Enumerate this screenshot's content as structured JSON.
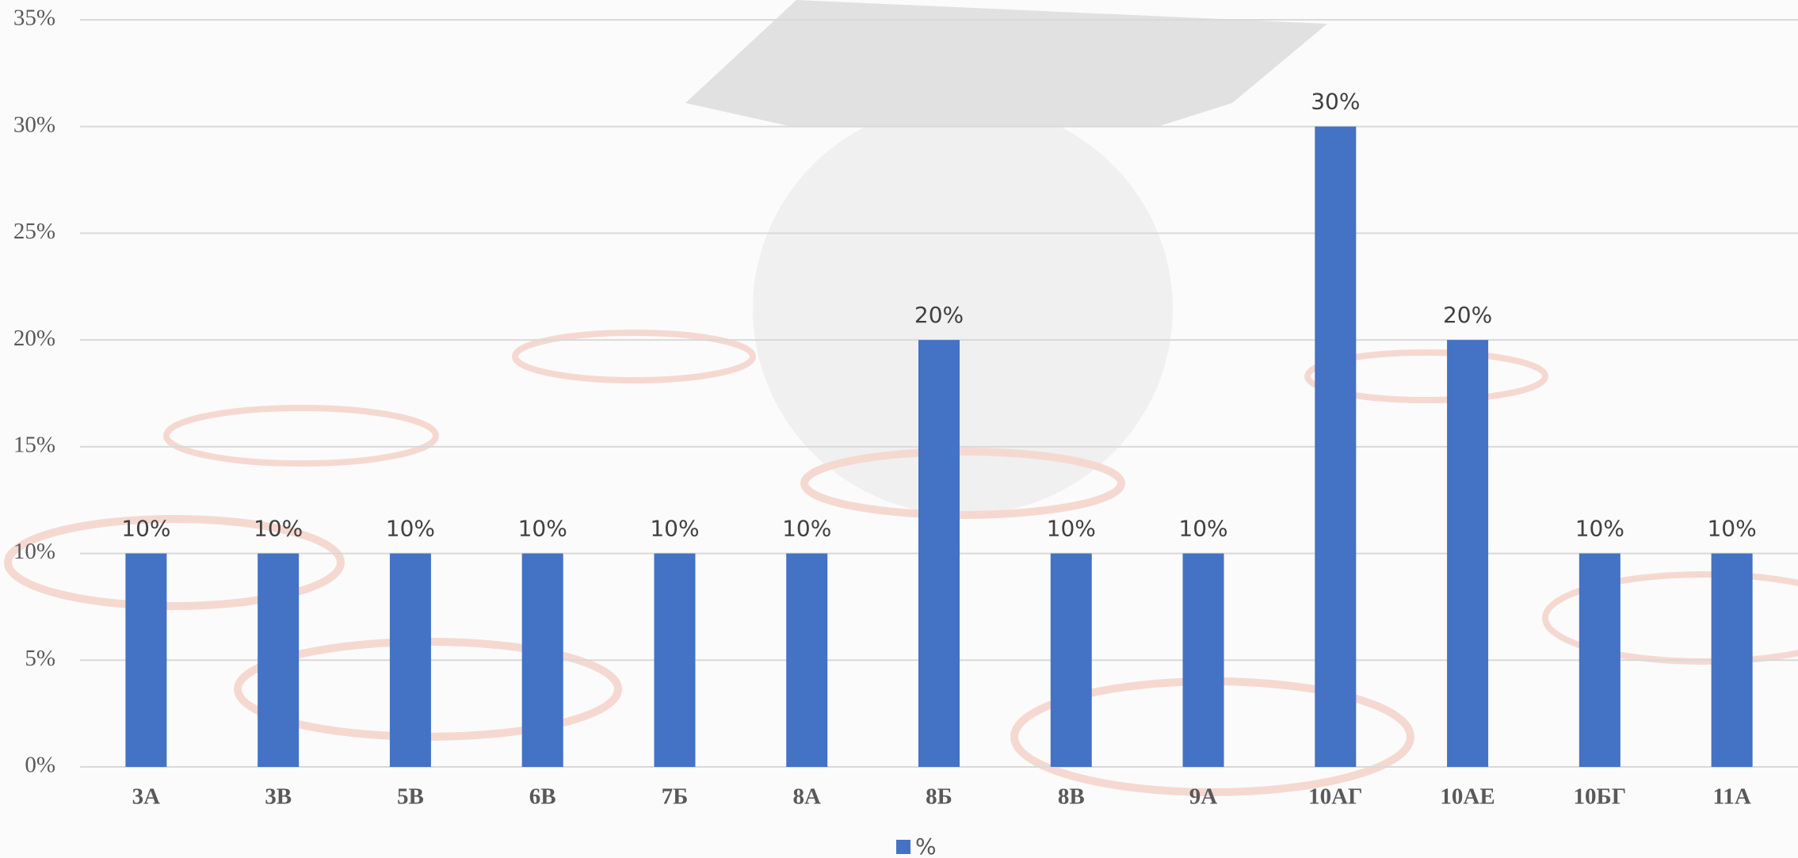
{
  "chart_data": {
    "type": "bar",
    "categories": [
      "3А",
      "3В",
      "5В",
      "6В",
      "7Б",
      "8А",
      "8Б",
      "8В",
      "9А",
      "10АГ",
      "10АЕ",
      "10БГ",
      "11А"
    ],
    "series": [
      {
        "name": "%",
        "color": "#4472c4",
        "values": [
          10,
          10,
          10,
          10,
          10,
          10,
          20,
          10,
          10,
          30,
          20,
          10,
          10
        ],
        "value_labels": [
          "10%",
          "10%",
          "10%",
          "10%",
          "10%",
          "10%",
          "20%",
          "10%",
          "10%",
          "30%",
          "20%",
          "10%",
          "10%"
        ]
      }
    ],
    "ylim": [
      0,
      35
    ],
    "yticks": [
      {
        "value": 0,
        "label": "0%"
      },
      {
        "value": 5,
        "label": "5%"
      },
      {
        "value": 10,
        "label": "10%"
      },
      {
        "value": 15,
        "label": "15%"
      },
      {
        "value": 20,
        "label": "20%"
      },
      {
        "value": 25,
        "label": "25%"
      },
      {
        "value": 30,
        "label": "30%"
      },
      {
        "value": 35,
        "label": "35%"
      }
    ],
    "grid": true,
    "legend": "bottom"
  }
}
